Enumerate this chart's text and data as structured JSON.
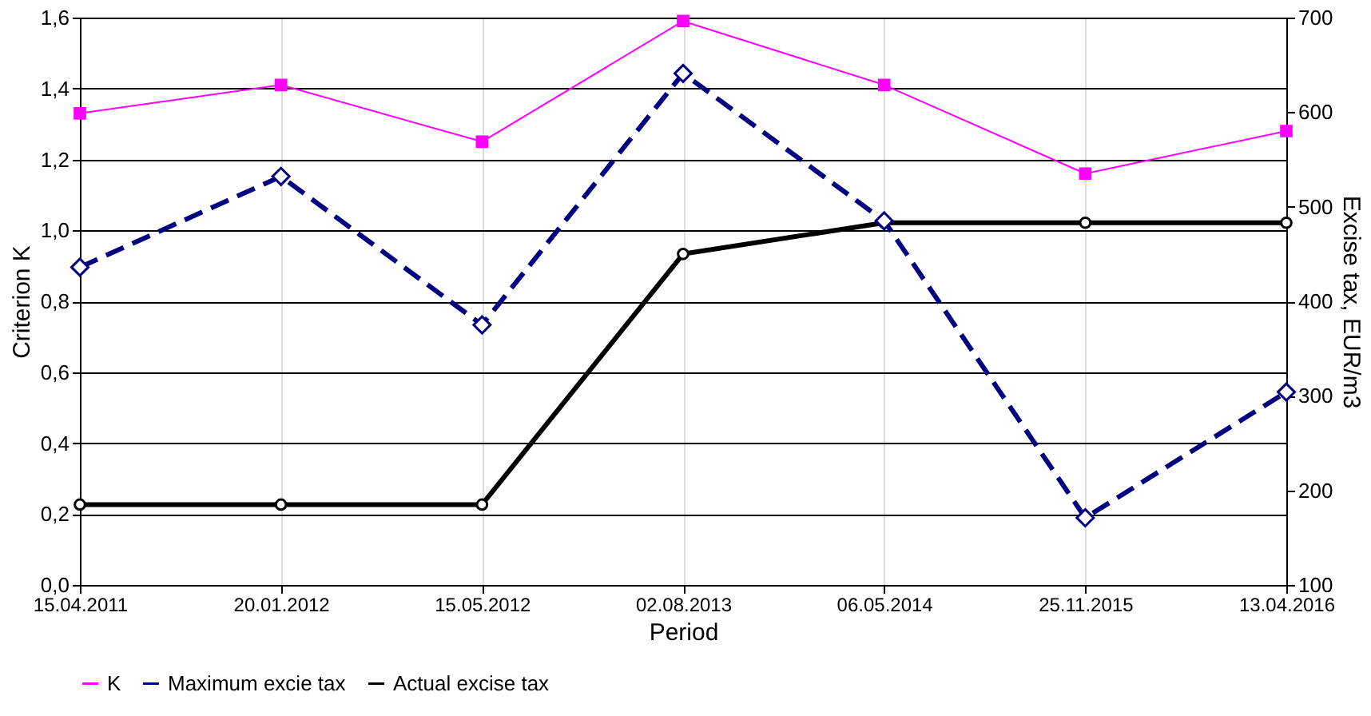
{
  "chart_data": {
    "type": "line",
    "categories": [
      "15.04.2011",
      "20.01.2012",
      "15.05.2012",
      "02.08.2013",
      "06.05.2014",
      "25.11.2015",
      "13.04.2016"
    ],
    "xlabel": "Period",
    "ylabel": "Criterion K",
    "y2label": "Excise tax, EUR/m3",
    "ylim": [
      0,
      1.6
    ],
    "yticks": [
      {
        "value": 0,
        "label": "0,0"
      },
      {
        "value": 0.2,
        "label": "0,2"
      },
      {
        "value": 0.4,
        "label": "0,4"
      },
      {
        "value": 0.6,
        "label": "0,6"
      },
      {
        "value": 0.8,
        "label": "0,8"
      },
      {
        "value": 1.0,
        "label": "1,0"
      },
      {
        "value": 1.2,
        "label": "1,2"
      },
      {
        "value": 1.4,
        "label": "1,4"
      },
      {
        "value": 1.6,
        "label": "1,6"
      }
    ],
    "y2lim": [
      100,
      700
    ],
    "y2ticks": [
      100,
      200,
      300,
      400,
      500,
      600,
      700
    ],
    "grid": true,
    "legend": "bottom",
    "series": [
      {
        "name": "K",
        "color": "#ff00ff",
        "marker": "square",
        "line_style": "solid",
        "values": [
          1.33,
          1.41,
          1.25,
          1.59,
          1.41,
          1.16,
          1.28
        ]
      },
      {
        "name": "Maximum excie tax",
        "color": "#000080",
        "marker": "diamond",
        "line_style": "dashed",
        "axis": "y2",
        "values": [
          436,
          532,
          375,
          641,
          485,
          171,
          304
        ]
      },
      {
        "name": "Actual excise tax",
        "color": "#000000",
        "marker": "circle",
        "line_style": "solid",
        "axis": "y2",
        "values": [
          185,
          185,
          185,
          450,
          483,
          483,
          483
        ]
      }
    ]
  }
}
